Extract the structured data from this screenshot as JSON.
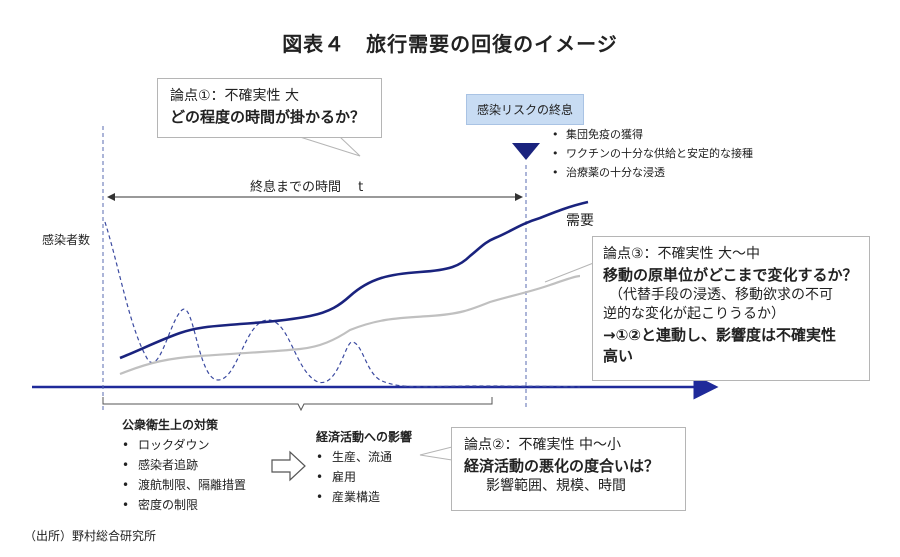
{
  "title": "図表４　旅行需要の回復のイメージ",
  "callout1": {
    "line1": "論点①：不確実性 大",
    "line2": "どの程度の時間が掛かるか？"
  },
  "risk": {
    "label": "感染リスクの終息",
    "bullets": [
      "集団免疫の獲得",
      "ワクチンの十分な供給と安定的な接種",
      "治療薬の十分な浸透"
    ]
  },
  "duration_label": "終息までの時間　 t",
  "infected_label": "感染者数",
  "demand_label": "需要",
  "callout3": {
    "line1": "論点③：不確実性 大〜中",
    "line2": "移動の原単位がどこまで変化するか？",
    "line3": "（代替手段の浸透、移動欲求の不可",
    "line4": "逆的な変化が起こりうるか）",
    "line5": "→①②と連動し、影響度は不確実性",
    "line6": "高い"
  },
  "measures": {
    "title": "公衆衛生上の対策",
    "items": [
      "ロックダウン",
      "感染者追跡",
      "渡航制限、隔離措置",
      "密度の制限"
    ]
  },
  "economy": {
    "title": "経済活動への影響",
    "items": [
      "生産、流通",
      "雇用",
      "産業構造"
    ]
  },
  "callout2": {
    "line1": "論点②：不確実性 中〜小",
    "line2": "経済活動の悪化の度合いは？",
    "line3": "影響範囲、規模、時間"
  },
  "source": "（出所）野村総合研究所",
  "colors": {
    "axis": "#1f2a9a",
    "demand": "#1a237e",
    "gray_curve": "#c0c0c0",
    "infection": "#3b4aa0",
    "risk_bg": "#c8dcf3"
  }
}
